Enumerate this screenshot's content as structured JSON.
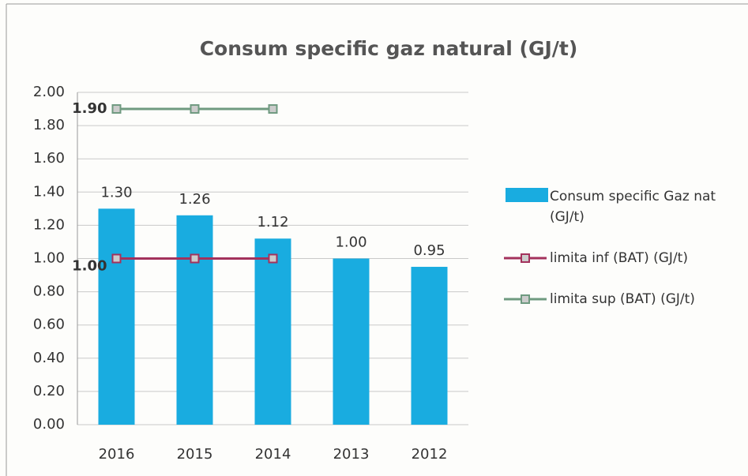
{
  "chart_data": {
    "type": "bar",
    "title": "Consum specific gaz natural (GJ/t)",
    "categories": [
      "2016",
      "2015",
      "2014",
      "2013",
      "2012"
    ],
    "series": [
      {
        "name": "Consum specific Gaz nat (GJ/t)",
        "type": "bar",
        "color": "#19ace0",
        "values": [
          1.3,
          1.26,
          1.12,
          1.0,
          0.95
        ],
        "value_labels": [
          "1.30",
          "1.26",
          "1.12",
          "1.00",
          "0.95"
        ]
      },
      {
        "name": "limita inf (BAT) (GJ/t)",
        "type": "line",
        "color": "#a3325c",
        "values": [
          1.0,
          1.0,
          1.0,
          null,
          null
        ],
        "value_labels": [
          "1.00",
          null,
          null,
          null,
          null
        ]
      },
      {
        "name": "limita sup (BAT) (GJ/t)",
        "type": "line",
        "color": "#6f9a80",
        "values": [
          1.9,
          1.9,
          1.9,
          null,
          null
        ],
        "value_labels": [
          "1.90",
          null,
          null,
          null,
          null
        ]
      }
    ],
    "ylim": [
      0,
      2
    ],
    "yticks": [
      {
        "value": 0,
        "label": "0.00"
      },
      {
        "value": 0.2,
        "label": "0.20"
      },
      {
        "value": 0.4,
        "label": "0.40"
      },
      {
        "value": 0.6,
        "label": "0.60"
      },
      {
        "value": 0.8,
        "label": "0.80"
      },
      {
        "value": 1,
        "label": "1.00"
      },
      {
        "value": 1.2,
        "label": "1.20"
      },
      {
        "value": 1.4,
        "label": "1.40"
      },
      {
        "value": 1.6,
        "label": "1.60"
      },
      {
        "value": 1.8,
        "label": "1.80"
      },
      {
        "value": 2,
        "label": "2.00"
      }
    ],
    "grid": true,
    "legend": "right"
  }
}
